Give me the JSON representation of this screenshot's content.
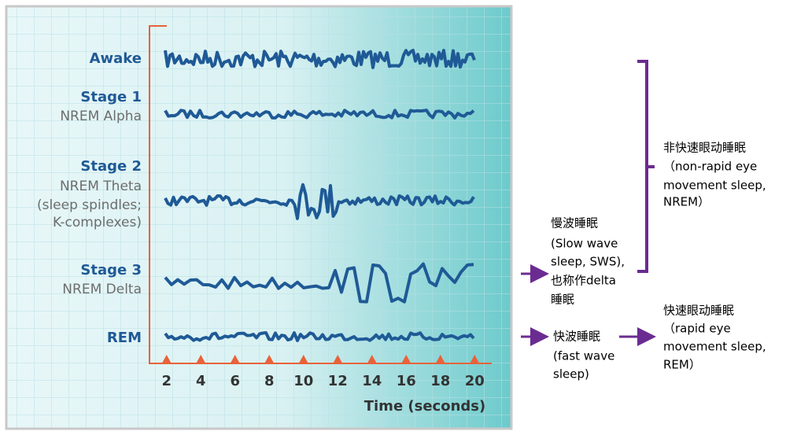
{
  "rows": [
    {
      "title": "Awake",
      "lines": []
    },
    {
      "title": "Stage 1",
      "lines": [
        "NREM Alpha"
      ]
    },
    {
      "title": "Stage 2",
      "lines": [
        "NREM Theta",
        "(sleep spindles;",
        "K-complexes)"
      ]
    },
    {
      "title": "Stage 3",
      "lines": [
        "NREM Delta"
      ]
    },
    {
      "title": "REM",
      "lines": []
    }
  ],
  "x_axis": {
    "title": "Time (seconds)",
    "xlim": [
      1,
      21
    ],
    "ticks": [
      2,
      4,
      6,
      8,
      10,
      12,
      14,
      16,
      18,
      20
    ]
  },
  "annotations": {
    "nrem": [
      "非快速眼动睡眠",
      "（non-rapid eye",
      "movement sleep,",
      "NREM）"
    ],
    "sws": [
      "慢波睡眠",
      "(Slow wave",
      "sleep, SWS),",
      "也称作delta",
      "睡眠"
    ],
    "fast": [
      "快波睡眠",
      "(fast wave",
      "sleep)"
    ],
    "rem": [
      "快速眼动睡眠",
      "（rapid eye",
      "movement sleep,",
      "REM）"
    ]
  }
}
